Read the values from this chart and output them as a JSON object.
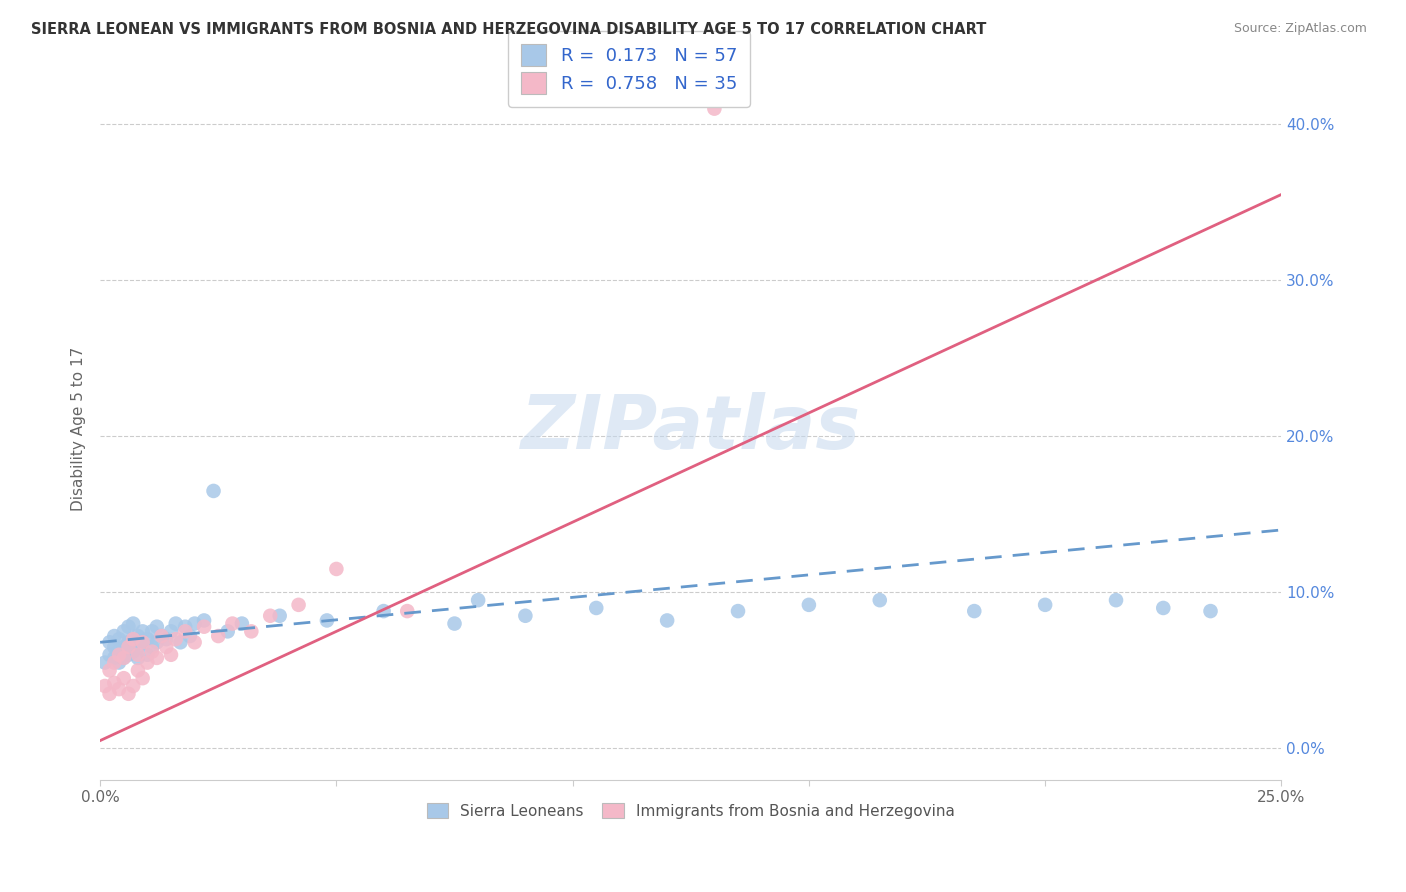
{
  "title": "SIERRA LEONEAN VS IMMIGRANTS FROM BOSNIA AND HERZEGOVINA DISABILITY AGE 5 TO 17 CORRELATION CHART",
  "source": "Source: ZipAtlas.com",
  "ylabel": "Disability Age 5 to 17",
  "legend1_label": "R =  0.173   N = 57",
  "legend2_label": "R =  0.758   N = 35",
  "legend_bottom1": "Sierra Leoneans",
  "legend_bottom2": "Immigrants from Bosnia and Herzegovina",
  "xlim": [
    0.0,
    0.25
  ],
  "ylim": [
    -0.02,
    0.43
  ],
  "ytick_vals": [
    0.0,
    0.1,
    0.2,
    0.3,
    0.4
  ],
  "ytick_labels": [
    "0.0%",
    "10.0%",
    "20.0%",
    "30.0%",
    "40.0%"
  ],
  "xtick_vals": [
    0.0,
    0.05,
    0.1,
    0.15,
    0.2,
    0.25
  ],
  "xtick_labels": [
    "0.0%",
    "",
    "",
    "",
    "",
    "25.0%"
  ],
  "color_blue": "#a8c8e8",
  "color_pink": "#f4b8c8",
  "color_blue_line": "#6699cc",
  "color_pink_line": "#e06080",
  "watermark": "ZIPatlas",
  "blue_scatter_x": [
    0.001,
    0.002,
    0.002,
    0.003,
    0.003,
    0.003,
    0.004,
    0.004,
    0.004,
    0.005,
    0.005,
    0.005,
    0.006,
    0.006,
    0.006,
    0.007,
    0.007,
    0.007,
    0.008,
    0.008,
    0.008,
    0.009,
    0.009,
    0.01,
    0.01,
    0.011,
    0.011,
    0.012,
    0.012,
    0.013,
    0.014,
    0.015,
    0.016,
    0.017,
    0.018,
    0.019,
    0.02,
    0.022,
    0.024,
    0.027,
    0.03,
    0.038,
    0.048,
    0.06,
    0.075,
    0.08,
    0.09,
    0.105,
    0.12,
    0.135,
    0.15,
    0.165,
    0.185,
    0.2,
    0.215,
    0.225,
    0.235
  ],
  "blue_scatter_y": [
    0.055,
    0.06,
    0.068,
    0.058,
    0.065,
    0.072,
    0.055,
    0.062,
    0.07,
    0.058,
    0.065,
    0.075,
    0.06,
    0.068,
    0.078,
    0.062,
    0.07,
    0.08,
    0.058,
    0.065,
    0.072,
    0.068,
    0.075,
    0.06,
    0.07,
    0.065,
    0.075,
    0.068,
    0.078,
    0.072,
    0.07,
    0.075,
    0.08,
    0.068,
    0.078,
    0.072,
    0.08,
    0.082,
    0.165,
    0.075,
    0.08,
    0.085,
    0.082,
    0.088,
    0.08,
    0.095,
    0.085,
    0.09,
    0.082,
    0.088,
    0.092,
    0.095,
    0.088,
    0.092,
    0.095,
    0.09,
    0.088
  ],
  "pink_scatter_x": [
    0.001,
    0.002,
    0.002,
    0.003,
    0.003,
    0.004,
    0.004,
    0.005,
    0.005,
    0.006,
    0.006,
    0.007,
    0.007,
    0.008,
    0.008,
    0.009,
    0.009,
    0.01,
    0.011,
    0.012,
    0.013,
    0.014,
    0.015,
    0.016,
    0.018,
    0.02,
    0.022,
    0.025,
    0.028,
    0.032,
    0.036,
    0.042,
    0.05,
    0.065,
    0.13
  ],
  "pink_scatter_y": [
    0.04,
    0.035,
    0.05,
    0.042,
    0.055,
    0.038,
    0.06,
    0.045,
    0.058,
    0.035,
    0.065,
    0.04,
    0.07,
    0.05,
    0.06,
    0.045,
    0.068,
    0.055,
    0.062,
    0.058,
    0.072,
    0.065,
    0.06,
    0.07,
    0.075,
    0.068,
    0.078,
    0.072,
    0.08,
    0.075,
    0.085,
    0.092,
    0.115,
    0.088,
    0.41
  ],
  "blue_line_x0": 0.0,
  "blue_line_x1": 0.25,
  "blue_line_y0": 0.068,
  "blue_line_y1": 0.14,
  "pink_line_x0": 0.0,
  "pink_line_x1": 0.25,
  "pink_line_y0": 0.005,
  "pink_line_y1": 0.355
}
